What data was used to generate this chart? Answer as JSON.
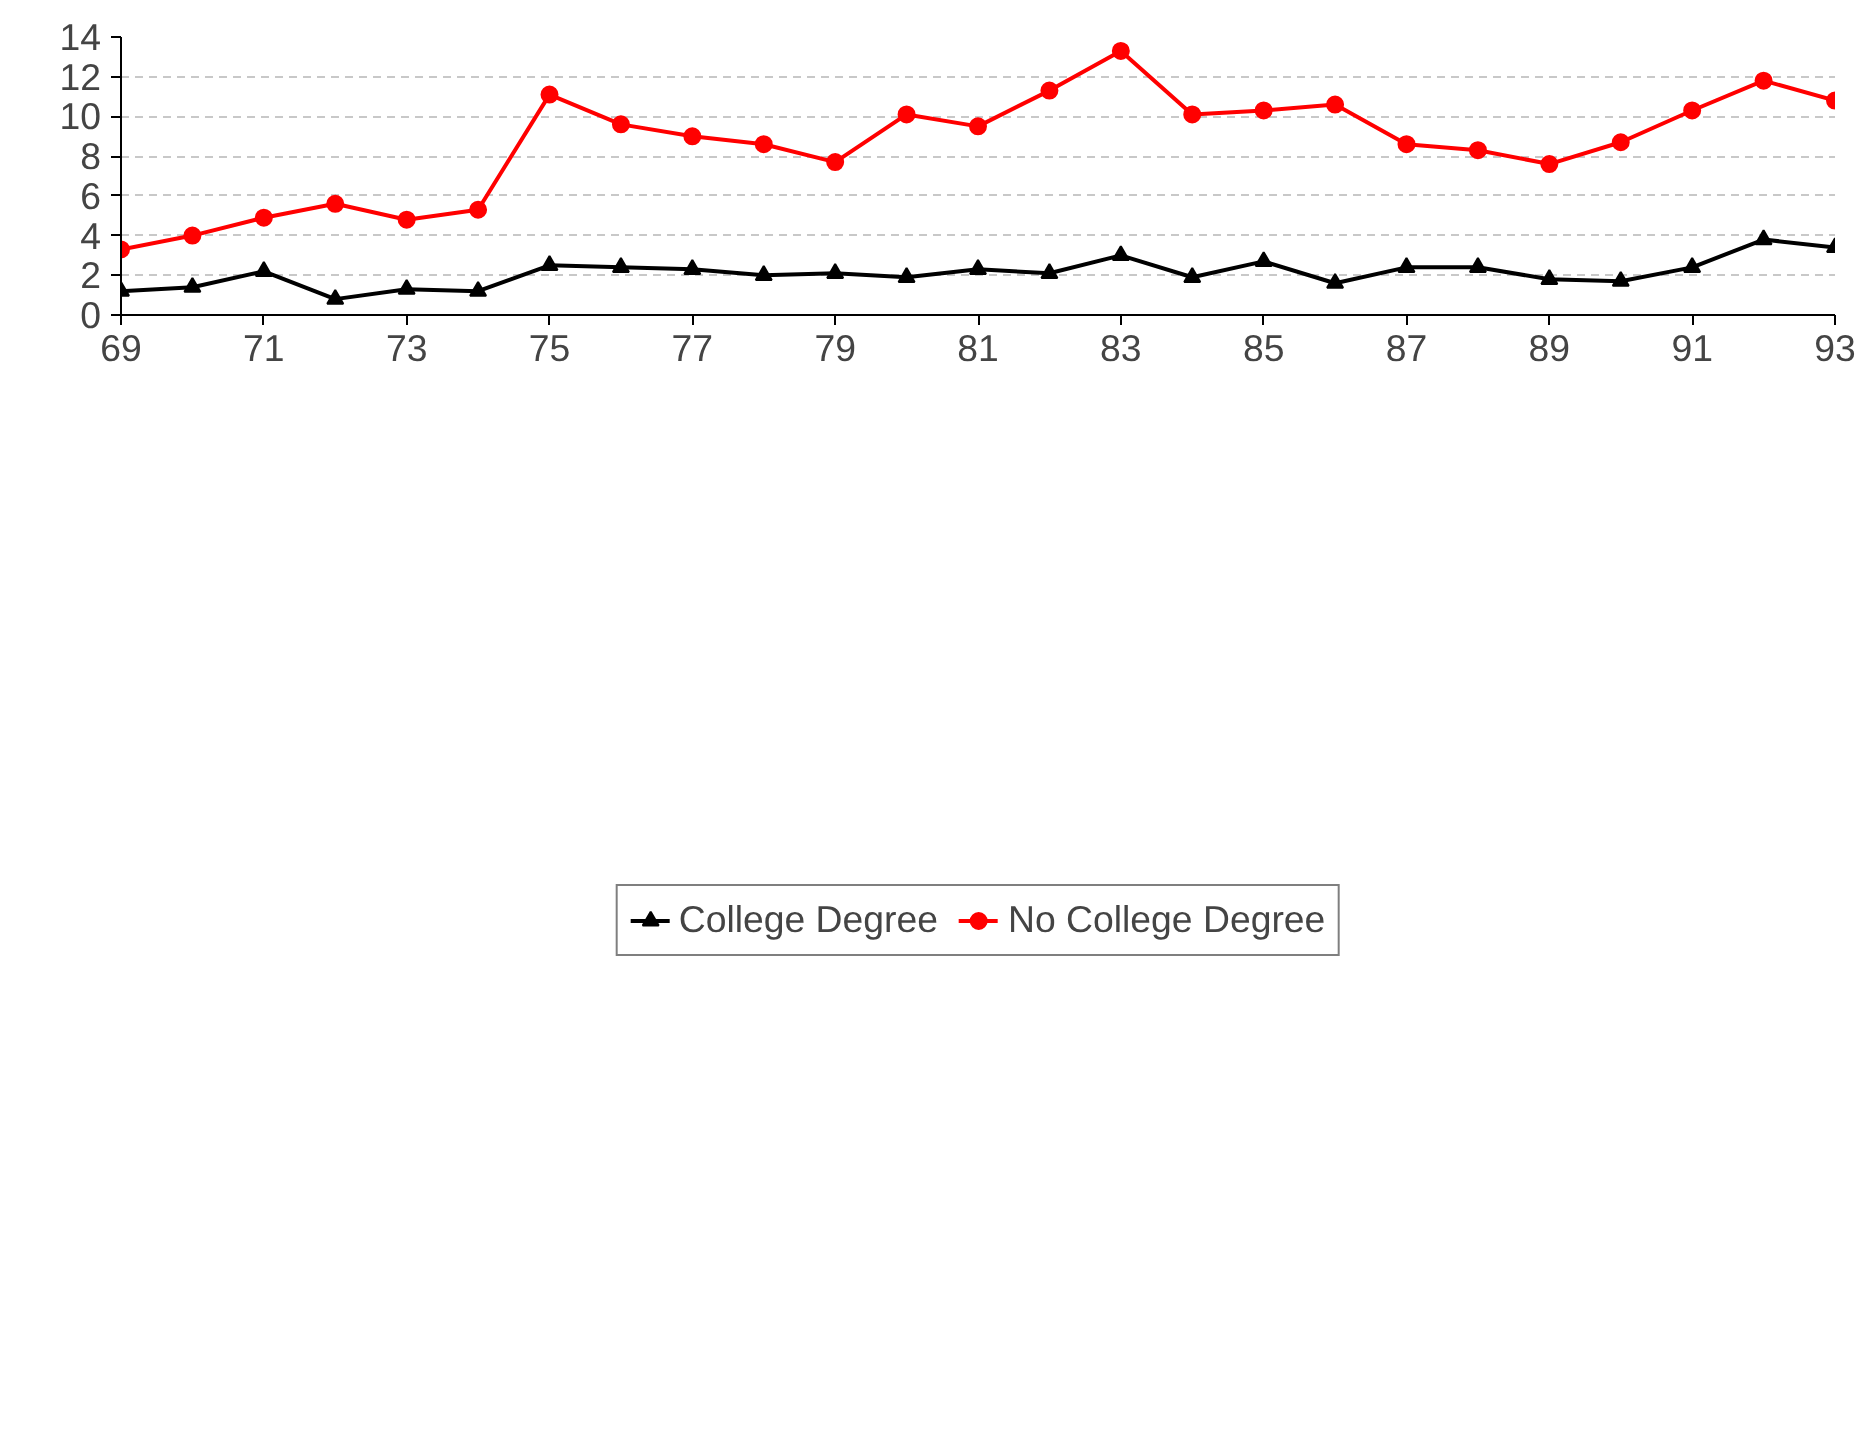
{
  "chart_data": {
    "type": "line",
    "x": [
      69,
      70,
      71,
      72,
      73,
      74,
      75,
      76,
      77,
      78,
      79,
      80,
      81,
      82,
      83,
      84,
      85,
      86,
      87,
      88,
      89,
      90,
      91,
      92,
      93
    ],
    "xlim": [
      69,
      93
    ],
    "xticks": [
      69,
      71,
      73,
      75,
      77,
      79,
      81,
      83,
      85,
      87,
      89,
      91,
      93
    ],
    "ylim": [
      0,
      14
    ],
    "yticks": [
      0,
      2,
      4,
      6,
      8,
      10,
      12,
      14
    ],
    "grid": "y",
    "legend": "bottom",
    "series": [
      {
        "name": "College Degree",
        "color": "#000000",
        "marker": "triangle",
        "values": [
          1.2,
          1.4,
          2.2,
          0.8,
          1.3,
          1.2,
          2.5,
          2.4,
          2.3,
          2.0,
          2.1,
          1.9,
          2.3,
          2.1,
          3.0,
          1.9,
          2.7,
          1.6,
          2.4,
          2.4,
          1.8,
          1.7,
          2.4,
          3.8,
          3.4
        ]
      },
      {
        "name": "No College Degree",
        "color": "#ff0000",
        "marker": "circle",
        "values": [
          3.3,
          4.0,
          4.9,
          5.6,
          4.8,
          5.3,
          11.1,
          9.6,
          9.0,
          8.6,
          7.7,
          10.1,
          9.5,
          11.3,
          13.3,
          10.1,
          10.3,
          10.6,
          8.6,
          8.3,
          7.6,
          8.7,
          10.3,
          11.8,
          10.8
        ]
      }
    ]
  }
}
